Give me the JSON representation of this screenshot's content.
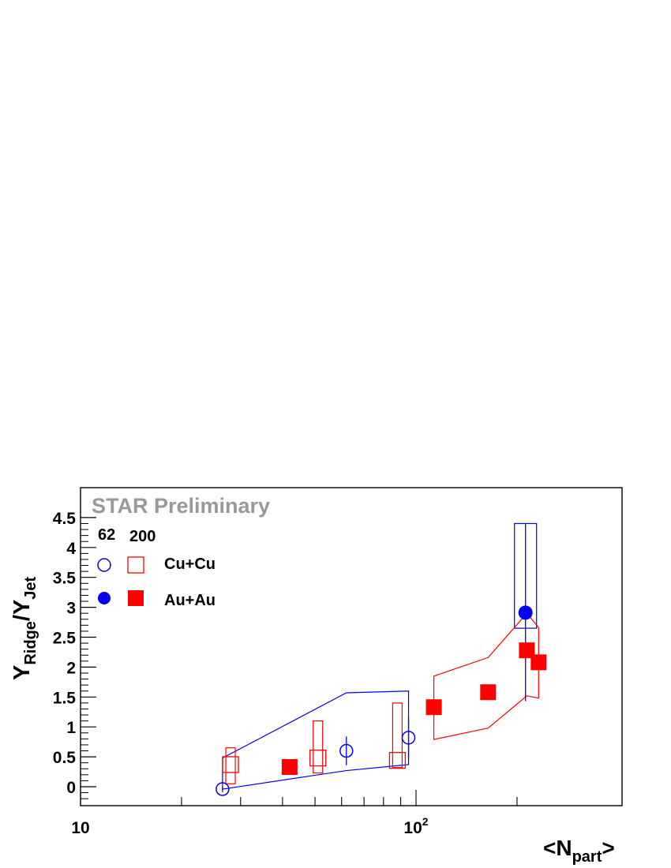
{
  "chart_data": {
    "type": "scatter",
    "annotation": "STAR Preliminary",
    "xlabel": {
      "main": "<N",
      "sub": "part",
      "tail": ">"
    },
    "ylabel": {
      "a": "Y",
      "a_sub": "Ridge",
      "slash": "/Y",
      "b_sub": "Jet"
    },
    "x_scale": "log",
    "xlim": [
      10,
      220
    ],
    "ylim": [
      -0.3,
      4.5
    ],
    "x_ticks": [
      {
        "value": 10,
        "label": "10"
      },
      {
        "value": 100,
        "label": "10",
        "sup": "2"
      }
    ],
    "y_ticks": [
      {
        "value": 0,
        "label": "0"
      },
      {
        "value": 0.5,
        "label": "0.5"
      },
      {
        "value": 1,
        "label": "1"
      },
      {
        "value": 1.5,
        "label": "1.5"
      },
      {
        "value": 2,
        "label": "2"
      },
      {
        "value": 2.5,
        "label": "2.5"
      },
      {
        "value": 3,
        "label": "3"
      },
      {
        "value": 3.5,
        "label": "3.5"
      },
      {
        "value": 4,
        "label": "4"
      },
      {
        "value": 4.5,
        "label": "4.5"
      }
    ],
    "legend": {
      "col_headers": [
        "62",
        "200"
      ],
      "rows": [
        "Cu+Cu",
        "Au+Au"
      ]
    },
    "series": [
      {
        "system": "Cu+Cu",
        "energy": "62",
        "marker": "open-circle",
        "color": "#0000ee",
        "points": [
          {
            "x": 26.5,
            "y": -0.04,
            "err": 0.05,
            "sys": [
              0.48,
              -0.04
            ]
          },
          {
            "x": 62,
            "y": 0.6,
            "err": 0.24,
            "sys": [
              1.57,
              0.27
            ]
          },
          {
            "x": 95,
            "y": 0.82,
            "err": 0.35,
            "sys": [
              1.6,
              0.37
            ]
          }
        ],
        "sys_style": "band"
      },
      {
        "system": "Au+Au",
        "energy": "62",
        "marker": "filled-circle",
        "color": "#0000ee",
        "points": [
          {
            "x": 212,
            "y": 2.91,
            "err": 1.48,
            "sys": [
              4.4,
              2.65
            ]
          }
        ],
        "sys_style": "box"
      },
      {
        "system": "Cu+Cu",
        "energy": "200",
        "marker": "open-square",
        "color": "#ff0000",
        "points": [
          {
            "x": 28,
            "y": 0.37,
            "sys": [
              0.65,
              0.05
            ]
          },
          {
            "x": 51,
            "y": 0.48,
            "sys": [
              1.1,
              0.23
            ]
          },
          {
            "x": 88,
            "y": 0.44,
            "sys": [
              1.4,
              0.32
            ]
          }
        ],
        "sys_style": "box"
      },
      {
        "system": "Au+Au",
        "energy": "200",
        "marker": "filled-square",
        "color": "#ff0000",
        "points": [
          {
            "x": 42,
            "y": 0.33
          },
          {
            "x": 113,
            "y": 1.33,
            "sys": [
              1.85,
              0.79
            ]
          },
          {
            "x": 164,
            "y": 1.58,
            "sys": [
              2.16,
              0.98
            ]
          },
          {
            "x": 232,
            "y": 2.08,
            "sys": [
              2.66,
              1.48
            ]
          },
          {
            "x": 214,
            "y": 2.28,
            "sys": [
              2.9,
              1.52
            ]
          }
        ],
        "sys_style": "band"
      }
    ]
  }
}
